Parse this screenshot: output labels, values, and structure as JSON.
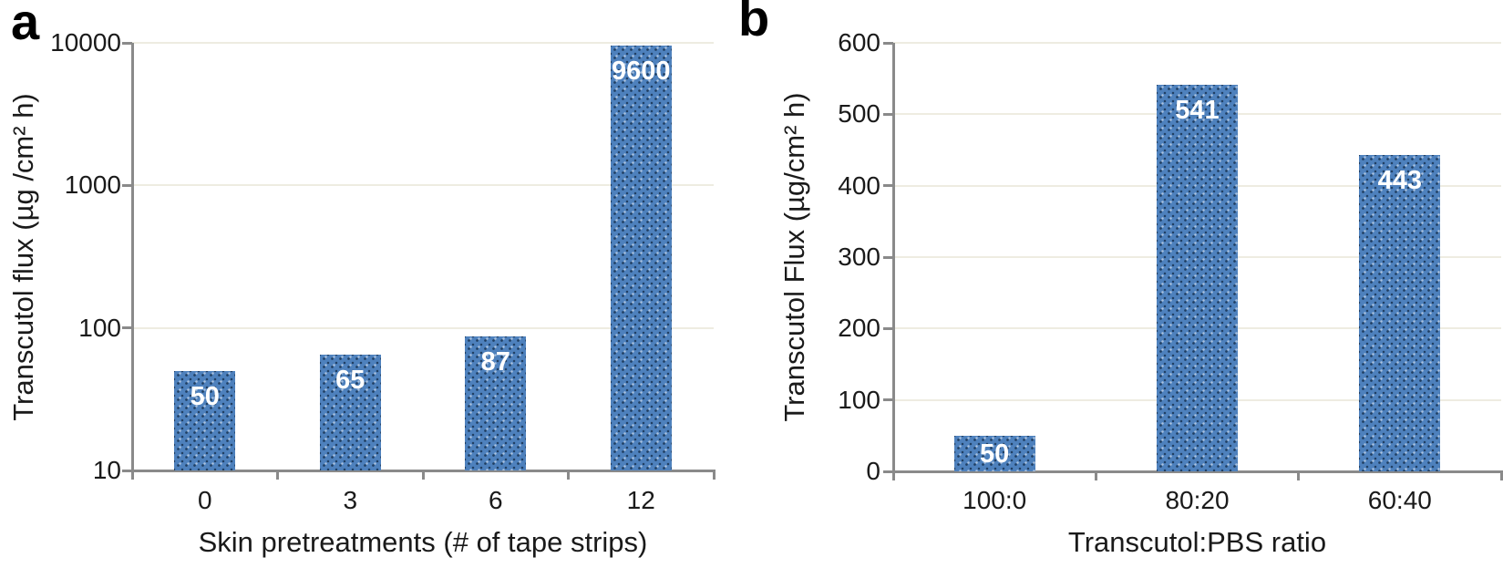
{
  "chart_data": [
    {
      "type": "bar",
      "panel_letter": "a",
      "scale": "log",
      "title": "",
      "xlabel": "Skin pretreatments (# of tape strips)",
      "ylabel": "Transcutol flux (µg /cm² h)",
      "categories": [
        "0",
        "3",
        "6",
        "12"
      ],
      "values": [
        50,
        65,
        87,
        9600
      ],
      "bar_labels": [
        "50",
        "65",
        "87",
        "9600"
      ],
      "ylim": [
        10,
        10000
      ],
      "yticks": [
        10,
        100,
        1000,
        10000
      ],
      "ytick_labels": [
        "10",
        "100",
        "1000",
        "10000"
      ],
      "grid": "horizontal-faint",
      "legend": "none"
    },
    {
      "type": "bar",
      "panel_letter": "b",
      "scale": "linear",
      "title": "",
      "xlabel": "Transcutol:PBS ratio",
      "ylabel": "Transcutol Flux (µg/cm² h)",
      "categories": [
        "100:0",
        "80:20",
        "60:40"
      ],
      "values": [
        50,
        541,
        443
      ],
      "bar_labels": [
        "50",
        "541",
        "443"
      ],
      "ylim": [
        0,
        600
      ],
      "yticks": [
        0,
        100,
        200,
        300,
        400,
        500,
        600
      ],
      "ytick_labels": [
        "0",
        "100",
        "200",
        "300",
        "400",
        "500",
        "600"
      ],
      "grid": "horizontal-faint",
      "legend": "none"
    }
  ],
  "colors": {
    "bar_fill": "#4e81bd",
    "bar_dot_dark": "#203e61",
    "bar_dot_light": "#aac1de",
    "axis": "#8a8a8a",
    "gridline": "#eeece1",
    "bar_label_text": "#ffffff",
    "text": "#1a1a1a"
  }
}
